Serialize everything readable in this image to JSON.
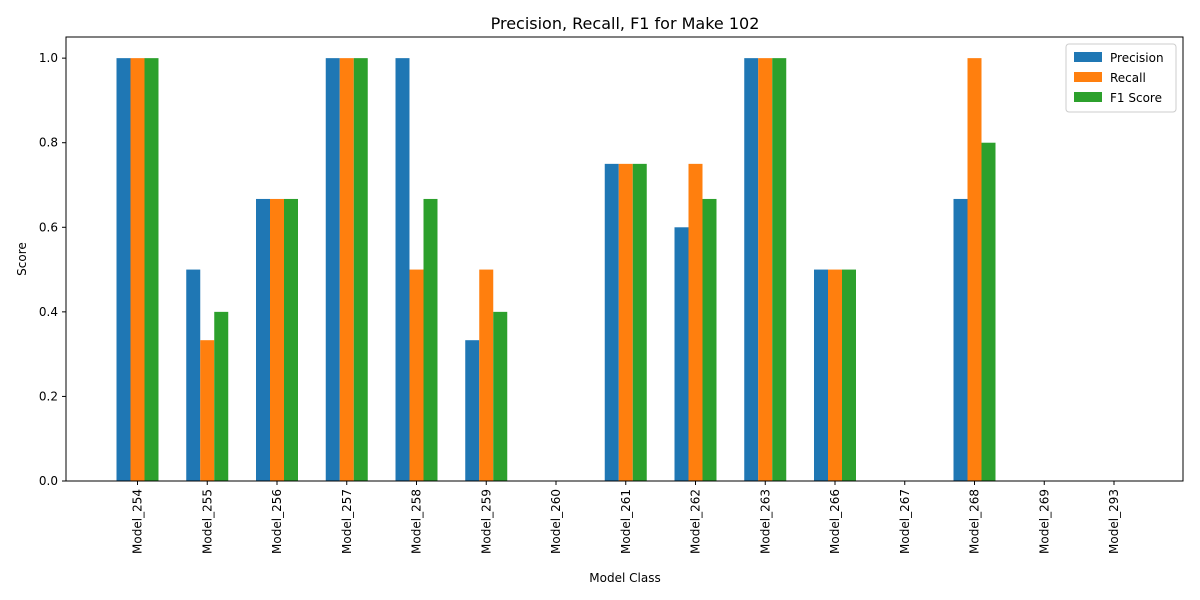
{
  "chart_data": {
    "type": "bar",
    "title": "Precision, Recall, F1 for Make 102",
    "xlabel": "Model Class",
    "ylabel": "Score",
    "ylim": [
      0,
      1.05
    ],
    "yticks": [
      "0.0",
      "0.2",
      "0.4",
      "0.6",
      "0.8",
      "1.0"
    ],
    "grid": false,
    "legend_position": "top-right",
    "categories": [
      "Model_254",
      "Model_255",
      "Model_256",
      "Model_257",
      "Model_258",
      "Model_259",
      "Model_260",
      "Model_261",
      "Model_262",
      "Model_263",
      "Model_266",
      "Model_267",
      "Model_268",
      "Model_269",
      "Model_293"
    ],
    "series": [
      {
        "name": "Precision",
        "color": "#1f77b4",
        "values": [
          1.0,
          0.5,
          0.667,
          1.0,
          1.0,
          0.333,
          0.0,
          0.75,
          0.6,
          1.0,
          0.5,
          0.0,
          0.667,
          0.0,
          0.0
        ]
      },
      {
        "name": "Recall",
        "color": "#ff7f0e",
        "values": [
          1.0,
          0.333,
          0.667,
          1.0,
          0.5,
          0.5,
          0.0,
          0.75,
          0.75,
          1.0,
          0.5,
          0.0,
          1.0,
          0.0,
          0.0
        ]
      },
      {
        "name": "F1 Score",
        "color": "#2ca02c",
        "values": [
          1.0,
          0.4,
          0.667,
          1.0,
          0.667,
          0.4,
          0.0,
          0.75,
          0.667,
          1.0,
          0.5,
          0.0,
          0.8,
          0.0,
          0.0
        ]
      }
    ]
  }
}
